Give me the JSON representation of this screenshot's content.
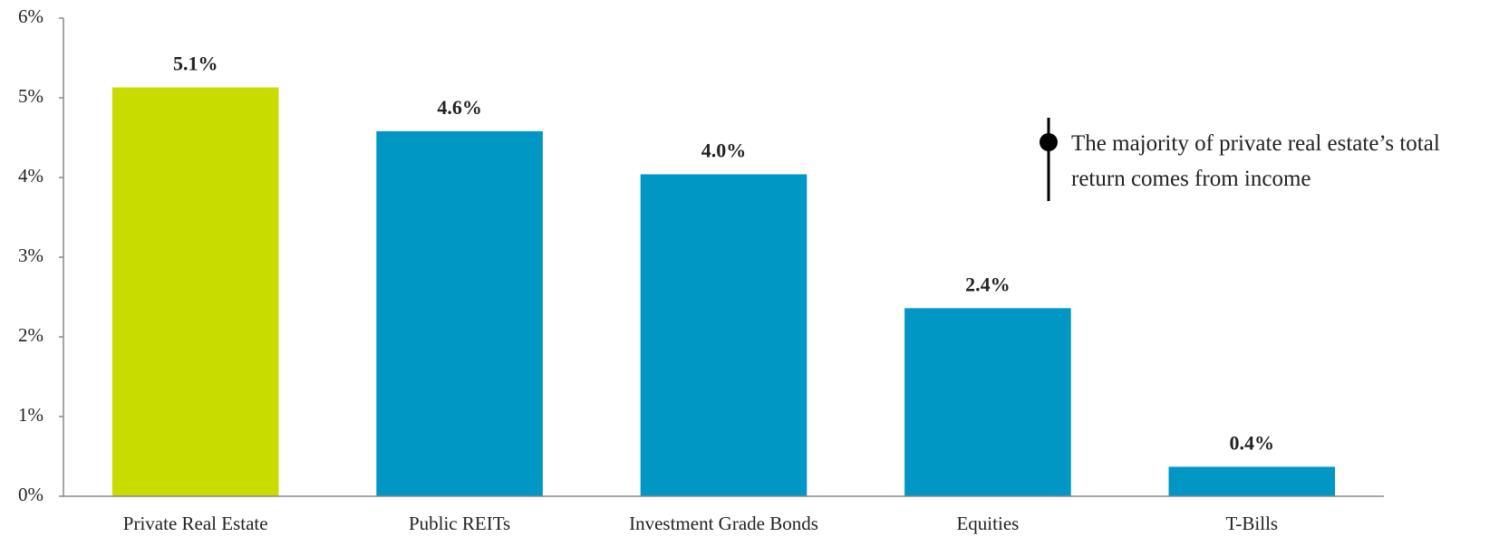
{
  "chart_data": {
    "type": "bar",
    "categories": [
      "Private Real Estate",
      "Public REITs",
      "Investment Grade Bonds",
      "Equities",
      "T-Bills"
    ],
    "values": [
      5.13,
      4.58,
      4.04,
      2.36,
      0.37
    ],
    "value_labels": [
      "5.1%",
      "4.6%",
      "4.0%",
      "2.4%",
      "0.4%"
    ],
    "colors": [
      "#c8dc00",
      "#0097c4",
      "#0097c4",
      "#0097c4",
      "#0097c4"
    ],
    "ylim": [
      0,
      6
    ],
    "yticks": [
      {
        "value": 0,
        "label": "0%"
      },
      {
        "value": 1,
        "label": "1%"
      },
      {
        "value": 2,
        "label": "2%"
      },
      {
        "value": 3,
        "label": "3%"
      },
      {
        "value": 4,
        "label": "4%"
      },
      {
        "value": 5,
        "label": "5%"
      },
      {
        "value": 6,
        "label": "6%"
      }
    ],
    "grid": false,
    "annotation": [
      "The majority of private real estate’s total",
      "return comes from income"
    ]
  }
}
